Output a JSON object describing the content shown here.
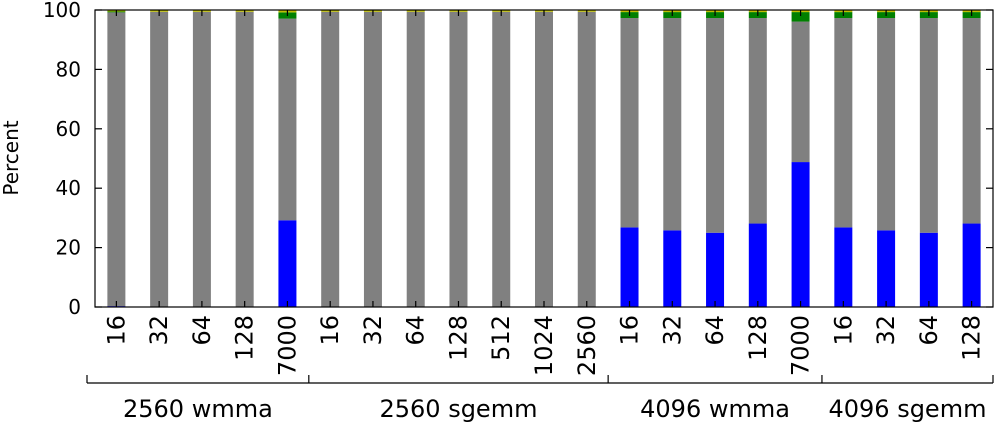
{
  "chart_data": {
    "type": "bar",
    "stacked": true,
    "ylabel": "Percent",
    "ylim": [
      0,
      100
    ],
    "yticks": [
      0,
      20,
      40,
      60,
      80,
      100
    ],
    "grid": false,
    "categories": [
      "16",
      "32",
      "64",
      "128",
      "7000",
      "16",
      "32",
      "64",
      "128",
      "512",
      "1024",
      "2560",
      "16",
      "32",
      "64",
      "128",
      "7000",
      "16",
      "32",
      "64",
      "128"
    ],
    "groups": [
      {
        "label": "2560 wmma",
        "start": 0,
        "end": 4
      },
      {
        "label": "2560 sgemm",
        "start": 5,
        "end": 11
      },
      {
        "label": "4096 wmma",
        "start": 12,
        "end": 16
      },
      {
        "label": "4096 sgemm",
        "start": 17,
        "end": 20
      }
    ],
    "series": [
      {
        "color": "#0000ff",
        "values": [
          0.3,
          0,
          0,
          0,
          29.2,
          0,
          0,
          0,
          0,
          0,
          0,
          0,
          26.8,
          25.8,
          25,
          28.1,
          48.8,
          26.8,
          25.8,
          25,
          28.1
        ]
      },
      {
        "color": "#808080",
        "values": [
          98.9,
          99.4,
          99.4,
          99.4,
          67.9,
          99.4,
          99.4,
          99.4,
          99.4,
          99.4,
          99.4,
          99.4,
          70.5,
          71.5,
          72.3,
          69.2,
          47.3,
          70.5,
          71.5,
          72.3,
          69.2
        ]
      },
      {
        "color": "#008000",
        "values": [
          0.3,
          0,
          0,
          0,
          2.1,
          0,
          0,
          0,
          0,
          0,
          0,
          0,
          2.0,
          2.0,
          2.0,
          2.0,
          3.2,
          2.0,
          2.0,
          2.0,
          2.0
        ]
      },
      {
        "color": "#bfbf00",
        "values": [
          0.5,
          0.6,
          0.6,
          0.6,
          0.8,
          0.6,
          0.6,
          0.6,
          0.6,
          0.6,
          0.6,
          0.6,
          0.7,
          0.7,
          0.7,
          0.7,
          0.7,
          0.7,
          0.7,
          0.7,
          0.7
        ]
      }
    ]
  }
}
